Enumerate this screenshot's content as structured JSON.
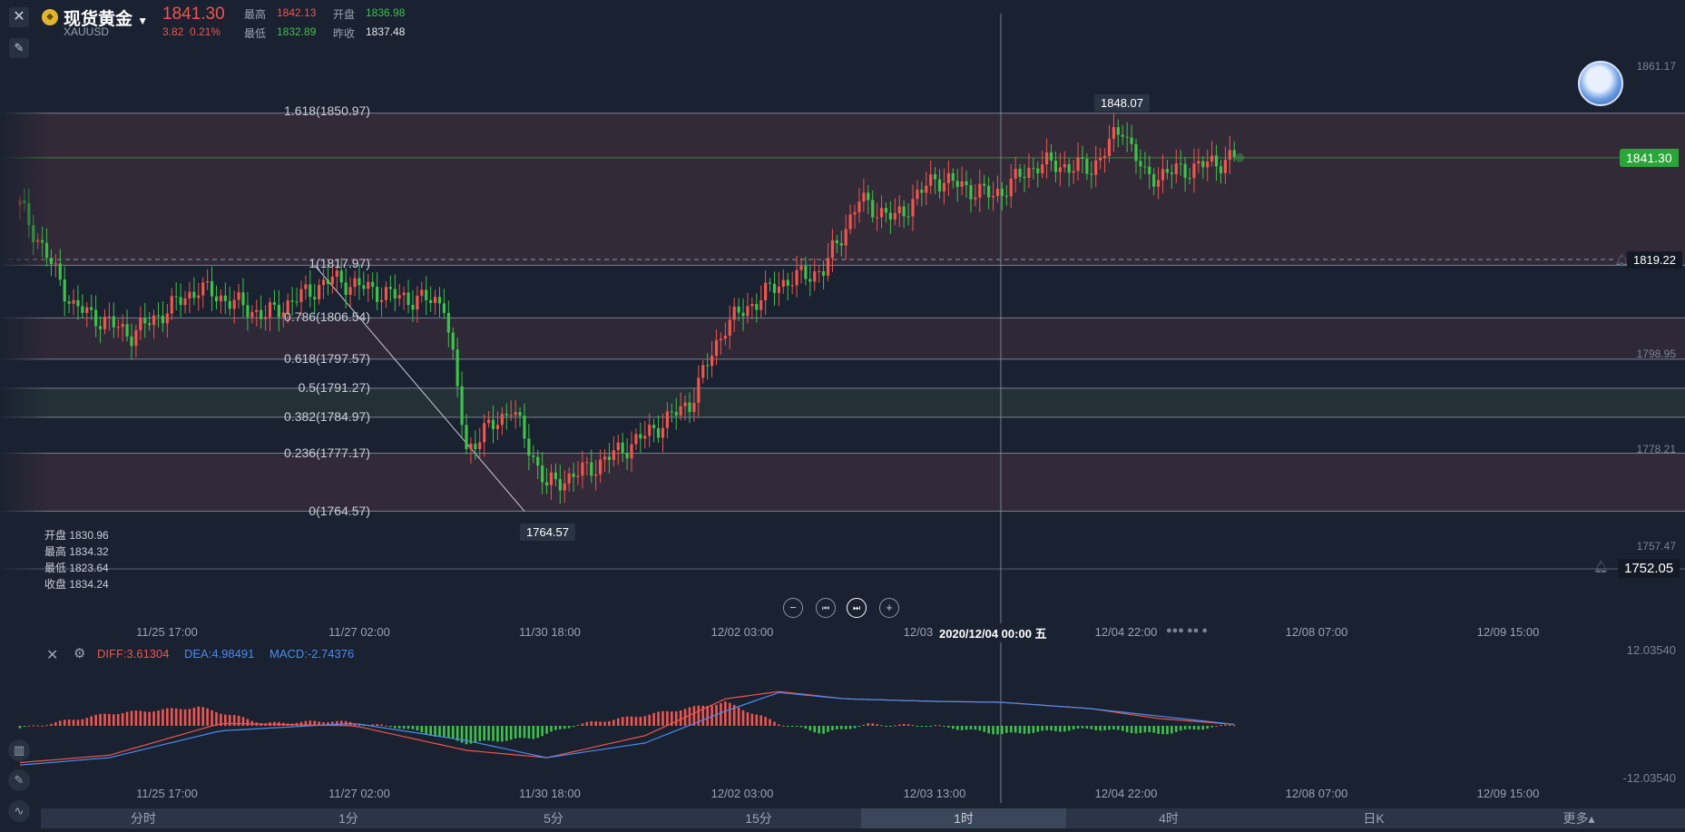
{
  "header": {
    "close_icon": "close-icon",
    "name": "现货黄金",
    "symbol": "XAUUSD",
    "price": "1841.30",
    "change": "3.82",
    "change_pct": "0.21%",
    "high_label": "最高",
    "high": "1842.13",
    "open_label": "开盘",
    "open": "1836.98",
    "low_label": "最低",
    "low": "1832.89",
    "prev_label": "昨收",
    "prev": "1837.48"
  },
  "ohlc_box": [
    "开盘 1830.96",
    "最高 1834.32",
    "最低 1823.64",
    "收盘 1834.24"
  ],
  "price_badges": {
    "current": "1841.30",
    "alert": "1819.22",
    "alert2": "1752.05",
    "peak": "1848.07",
    "trough": "1764.57"
  },
  "right_axis": [
    "1861.17",
    "1798.95",
    "1778.21",
    "1757.47"
  ],
  "crosshair_time": "2020/12/04 00:00 五",
  "time_axis": [
    "11/25 17:00",
    "11/27 02:00",
    "11/30 18:00",
    "12/02 03:00",
    "12/03 13:00",
    "12/04 22:00",
    "12/08 07:00",
    "12/09 15:00"
  ],
  "macd": {
    "diff": "DIFF:3.61304",
    "dea": "DEA:4.98491",
    "macd": "MACD:-2.74376",
    "max": "12.03540",
    "min": "-12.03540"
  },
  "tabs": [
    "分时",
    "1分",
    "5分",
    "15分",
    "1时",
    "4时",
    "日K",
    "更多▴"
  ],
  "active_tab": 4,
  "colors": {
    "up": "#f0554e",
    "down": "#3ec24a",
    "diff": "#f0554e",
    "dea": "#4a8cf0",
    "bg": "#1a2130"
  },
  "chart_data": {
    "type": "candlestick",
    "timeframe": "1时",
    "ylim": [
      1752.05,
      1861.17
    ],
    "fibonacci": [
      {
        "label": "1.618(1850.97)",
        "level": 1850.97
      },
      {
        "label": "1(1817.97)",
        "level": 1817.97
      },
      {
        "label": "0.786(1806.54)",
        "level": 1806.54
      },
      {
        "label": "0.618(1797.57)",
        "level": 1797.57
      },
      {
        "label": "0.5(1791.27)",
        "level": 1791.27
      },
      {
        "label": "0.382(1784.97)",
        "level": 1784.97
      },
      {
        "label": "0.236(1777.17)",
        "level": 1777.17
      },
      {
        "label": "0(1764.57)",
        "level": 1764.57
      }
    ],
    "current_price": 1841.3,
    "alert_price": 1819.22,
    "close_trend": [
      {
        "n": 0,
        "close": 1830.96
      },
      {
        "n": 12,
        "close": 1809
      },
      {
        "n": 25,
        "close": 1803
      },
      {
        "n": 40,
        "close": 1813
      },
      {
        "n": 55,
        "close": 1807
      },
      {
        "n": 70,
        "close": 1815
      },
      {
        "n": 85,
        "close": 1811
      },
      {
        "n": 95,
        "close": 1810
      },
      {
        "n": 100,
        "close": 1778
      },
      {
        "n": 110,
        "close": 1787
      },
      {
        "n": 118,
        "close": 1770
      },
      {
        "n": 128,
        "close": 1774
      },
      {
        "n": 140,
        "close": 1781
      },
      {
        "n": 150,
        "close": 1788
      },
      {
        "n": 158,
        "close": 1805
      },
      {
        "n": 170,
        "close": 1814
      },
      {
        "n": 180,
        "close": 1817
      },
      {
        "n": 188,
        "close": 1832
      },
      {
        "n": 196,
        "close": 1828
      },
      {
        "n": 205,
        "close": 1837
      },
      {
        "n": 218,
        "close": 1833
      },
      {
        "n": 228,
        "close": 1840
      },
      {
        "n": 240,
        "close": 1839
      },
      {
        "n": 247,
        "close": 1848.07
      },
      {
        "n": 252,
        "close": 1837
      },
      {
        "n": 262,
        "close": 1839
      },
      {
        "n": 272,
        "close": 1841.3
      }
    ],
    "macd_hist_trend": [
      {
        "n": 0,
        "v": -0.5
      },
      {
        "n": 20,
        "v": 2.5
      },
      {
        "n": 40,
        "v": 3.8
      },
      {
        "n": 55,
        "v": 0.5
      },
      {
        "n": 70,
        "v": 1.0
      },
      {
        "n": 85,
        "v": -0.3
      },
      {
        "n": 100,
        "v": -3.5
      },
      {
        "n": 115,
        "v": -2.5
      },
      {
        "n": 125,
        "v": 0.3
      },
      {
        "n": 140,
        "v": 2.2
      },
      {
        "n": 158,
        "v": 4.8
      },
      {
        "n": 170,
        "v": 0.5
      },
      {
        "n": 180,
        "v": -1.5
      },
      {
        "n": 190,
        "v": 0.3
      },
      {
        "n": 205,
        "v": 0.0
      },
      {
        "n": 220,
        "v": -1.7
      },
      {
        "n": 240,
        "v": -0.6
      },
      {
        "n": 255,
        "v": -1.7
      },
      {
        "n": 272,
        "v": 0.3
      }
    ],
    "diff_trend": [
      {
        "n": 0,
        "v": -7.5
      },
      {
        "n": 20,
        "v": -6.0
      },
      {
        "n": 45,
        "v": 0.5
      },
      {
        "n": 75,
        "v": 0.0
      },
      {
        "n": 100,
        "v": -5.0
      },
      {
        "n": 118,
        "v": -6.5
      },
      {
        "n": 140,
        "v": -2.0
      },
      {
        "n": 158,
        "v": 5.5
      },
      {
        "n": 170,
        "v": 7.0
      },
      {
        "n": 185,
        "v": 5.5
      },
      {
        "n": 205,
        "v": 5.0
      },
      {
        "n": 220,
        "v": 4.8
      },
      {
        "n": 240,
        "v": 3.5
      },
      {
        "n": 255,
        "v": 1.5
      },
      {
        "n": 272,
        "v": 0.3
      }
    ],
    "dea_trend": [
      {
        "n": 0,
        "v": -8.0
      },
      {
        "n": 20,
        "v": -6.5
      },
      {
        "n": 45,
        "v": -1.0
      },
      {
        "n": 75,
        "v": 0.5
      },
      {
        "n": 100,
        "v": -3.0
      },
      {
        "n": 118,
        "v": -6.5
      },
      {
        "n": 140,
        "v": -3.5
      },
      {
        "n": 158,
        "v": 3.0
      },
      {
        "n": 170,
        "v": 6.8
      },
      {
        "n": 185,
        "v": 5.5
      },
      {
        "n": 205,
        "v": 5.0
      },
      {
        "n": 220,
        "v": 4.8
      },
      {
        "n": 240,
        "v": 3.5
      },
      {
        "n": 255,
        "v": 2.0
      },
      {
        "n": 272,
        "v": 0.3
      }
    ]
  }
}
